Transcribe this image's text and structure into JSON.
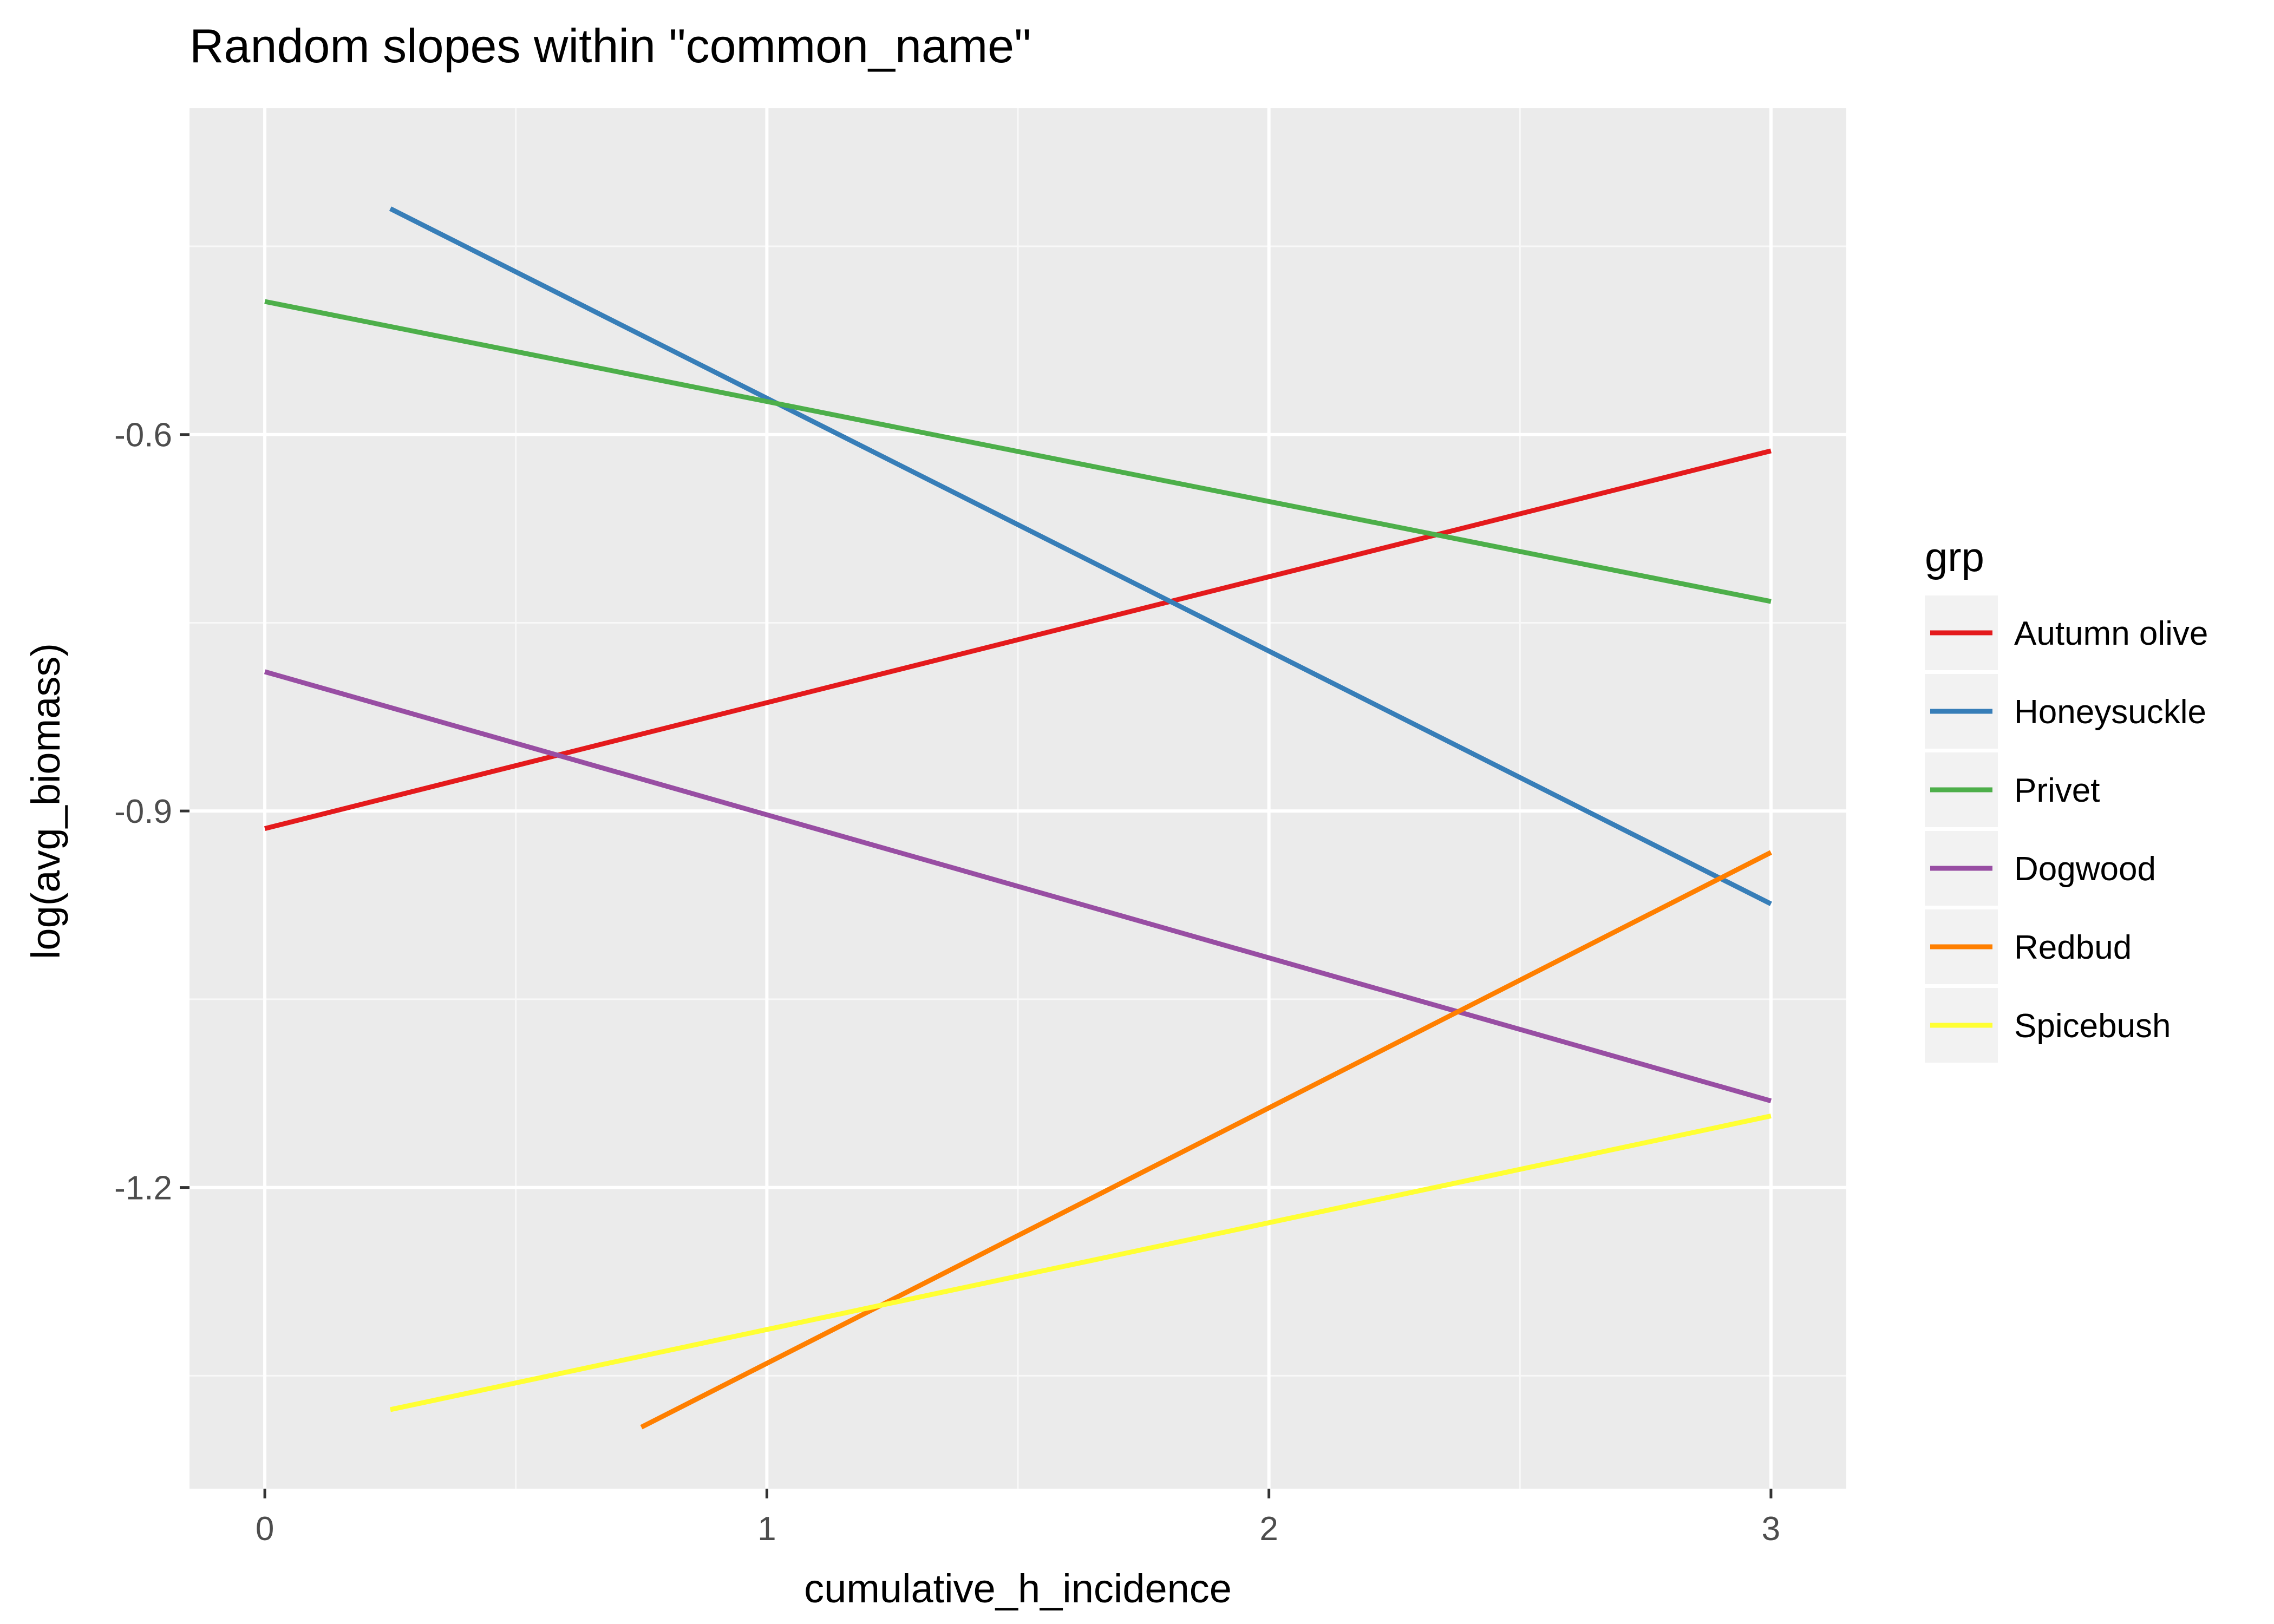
{
  "chart_data": {
    "type": "line",
    "title": "Random slopes within \"common_name\"",
    "xlabel": "cumulative_h_incidence",
    "ylabel": "log(avg_biomass)",
    "xlim": [
      -0.15,
      3.15
    ],
    "ylim": [
      -1.44,
      -0.34
    ],
    "x_ticks": [
      0,
      1,
      2,
      3
    ],
    "y_ticks": [
      -1.2,
      -0.9,
      -0.6
    ],
    "x_tick_labels": [
      "0",
      "1",
      "2",
      "3"
    ],
    "y_tick_labels": [
      "-1.2",
      "-0.9",
      "-0.6"
    ],
    "grid": true,
    "legend_position": "right",
    "legend_title": "grp",
    "series": [
      {
        "name": "Autumn olive",
        "color": "#e41a1c",
        "x": [
          0,
          3
        ],
        "y": [
          -0.914,
          -0.613
        ]
      },
      {
        "name": "Honeysuckle",
        "color": "#377eb8",
        "x": [
          0.25,
          3
        ],
        "y": [
          -0.42,
          -0.974
        ]
      },
      {
        "name": "Privet",
        "color": "#4daf4a",
        "x": [
          0,
          3
        ],
        "y": [
          -0.494,
          -0.733
        ]
      },
      {
        "name": "Dogwood",
        "color": "#984ea3",
        "x": [
          0,
          3
        ],
        "y": [
          -0.789,
          -1.131
        ]
      },
      {
        "name": "Redbud",
        "color": "#ff7f00",
        "x": [
          0.75,
          3
        ],
        "y": [
          -1.391,
          -0.933
        ]
      },
      {
        "name": "Spicebush",
        "color": "#ffff33",
        "x": [
          0.25,
          3
        ],
        "y": [
          -1.377,
          -1.143
        ]
      }
    ]
  }
}
